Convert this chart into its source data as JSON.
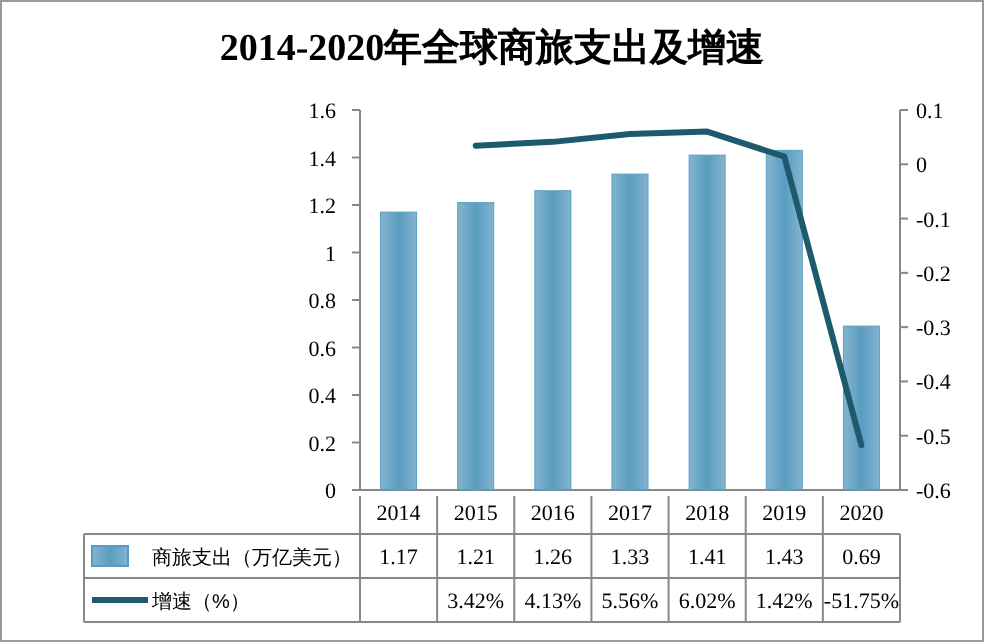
{
  "chart_data": {
    "type": "bar",
    "title": "2014-2020年全球商旅支出及增速",
    "categories": [
      "2014",
      "2015",
      "2016",
      "2017",
      "2018",
      "2019",
      "2020"
    ],
    "series": [
      {
        "name": "商旅支出（万亿美元）",
        "color": "#5a9cc0",
        "values": [
          1.17,
          1.21,
          1.26,
          1.33,
          1.41,
          1.43,
          0.69
        ],
        "value_labels": [
          "1.17",
          "1.21",
          "1.26",
          "1.33",
          "1.41",
          "1.43",
          "0.69"
        ]
      },
      {
        "name": "增速（%）",
        "type": "line",
        "axis": "y2",
        "color": "#1d5a6e",
        "values": [
          null,
          0.0342,
          0.0413,
          0.0556,
          0.0602,
          0.0142,
          -0.5175
        ],
        "value_labels": [
          null,
          "3.42%",
          "4.13%",
          "5.56%",
          "6.02%",
          "1.42%",
          "-51.75%"
        ]
      }
    ],
    "ylim": [
      0,
      1.6
    ],
    "yticks": [
      0,
      0.2,
      0.4,
      0.6,
      0.8,
      1,
      1.2,
      1.4,
      1.6
    ],
    "y2lim": [
      -0.6,
      0.1
    ],
    "y2ticks": [
      -0.6,
      -0.5,
      -0.4,
      -0.3,
      -0.2,
      -0.1,
      0,
      0.1
    ],
    "grid": false,
    "legend": "bottom",
    "marker": "none",
    "line_style": "solid"
  }
}
